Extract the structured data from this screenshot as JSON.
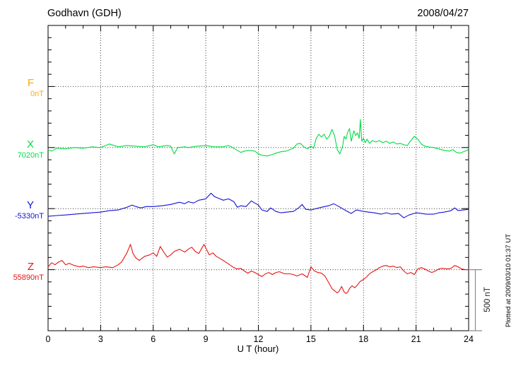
{
  "header": {
    "title": "Godhavn (GDH)",
    "date": "2008/04/27"
  },
  "footer_note": "Plotted at 2009/03/10 01:37 UT",
  "scale_bar": {
    "label": "500 nT",
    "span_nT": 500
  },
  "chart_data": {
    "type": "line",
    "title": "Godhavn (GDH)",
    "date": "2008/04/27",
    "xlabel": "U T (hour)",
    "x_range": [
      0,
      24
    ],
    "x_ticks": [
      0,
      3,
      6,
      9,
      12,
      15,
      18,
      21,
      24
    ],
    "x_minor_step_hours": 1,
    "y_minor_step_nT": 100,
    "y_major_step_nT": 500,
    "grid": "dotted vertical lines every 3 h; dotted horizontal line at each channel baseline",
    "legend_position": "left margin, one colored label per channel",
    "note": "points are [hour, offset_nT_from_channel_baseline]; vertical scale: 500 nT reference bar at right",
    "series": [
      {
        "name": "F",
        "baseline_label": "0nT",
        "baseline_nT": 0,
        "color": "#FFAA00",
        "points": []
      },
      {
        "name": "X",
        "baseline_label": "7020nT",
        "baseline_nT": 7020,
        "color": "#00DD44",
        "points": [
          [
            0,
            -17
          ],
          [
            0.2,
            -29
          ],
          [
            0.5,
            -6
          ],
          [
            1,
            -11
          ],
          [
            1.5,
            0
          ],
          [
            2,
            -6
          ],
          [
            2.5,
            6
          ],
          [
            3,
            0
          ],
          [
            3.5,
            29
          ],
          [
            4,
            6
          ],
          [
            4.5,
            17
          ],
          [
            5,
            11
          ],
          [
            5.5,
            6
          ],
          [
            6,
            23
          ],
          [
            6.3,
            6
          ],
          [
            6.8,
            17
          ],
          [
            7,
            11
          ],
          [
            7.2,
            -52
          ],
          [
            7.4,
            0
          ],
          [
            7.8,
            6
          ],
          [
            8,
            0
          ],
          [
            8.5,
            11
          ],
          [
            9,
            17
          ],
          [
            9.5,
            6
          ],
          [
            10,
            6
          ],
          [
            10.3,
            17
          ],
          [
            10.6,
            -6
          ],
          [
            10.8,
            -23
          ],
          [
            11,
            -40
          ],
          [
            11.2,
            -29
          ],
          [
            11.5,
            -23
          ],
          [
            11.8,
            -29
          ],
          [
            12,
            -52
          ],
          [
            12.2,
            -63
          ],
          [
            12.5,
            -69
          ],
          [
            12.8,
            -57
          ],
          [
            13,
            -46
          ],
          [
            13.3,
            -34
          ],
          [
            13.6,
            -29
          ],
          [
            14,
            -6
          ],
          [
            14.2,
            29
          ],
          [
            14.4,
            34
          ],
          [
            14.6,
            6
          ],
          [
            14.8,
            -11
          ],
          [
            15,
            11
          ],
          [
            15.15,
            -6
          ],
          [
            15.3,
            75
          ],
          [
            15.45,
            109
          ],
          [
            15.6,
            86
          ],
          [
            15.75,
            109
          ],
          [
            15.9,
            69
          ],
          [
            16.05,
            92
          ],
          [
            16.2,
            149
          ],
          [
            16.35,
            98
          ],
          [
            16.5,
            -17
          ],
          [
            16.65,
            -52
          ],
          [
            16.8,
            6
          ],
          [
            16.9,
            92
          ],
          [
            17,
            69
          ],
          [
            17.1,
            126
          ],
          [
            17.2,
            155
          ],
          [
            17.3,
            52
          ],
          [
            17.45,
            138
          ],
          [
            17.55,
            98
          ],
          [
            17.65,
            121
          ],
          [
            17.75,
            75
          ],
          [
            17.82,
            230
          ],
          [
            17.9,
            52
          ],
          [
            18,
            75
          ],
          [
            18.1,
            40
          ],
          [
            18.2,
            69
          ],
          [
            18.35,
            34
          ],
          [
            18.5,
            57
          ],
          [
            18.7,
            46
          ],
          [
            18.9,
            57
          ],
          [
            19.1,
            40
          ],
          [
            19.3,
            52
          ],
          [
            19.5,
            34
          ],
          [
            19.7,
            46
          ],
          [
            19.9,
            29
          ],
          [
            20.1,
            34
          ],
          [
            20.3,
            23
          ],
          [
            20.5,
            17
          ],
          [
            20.7,
            57
          ],
          [
            20.9,
            92
          ],
          [
            21.1,
            69
          ],
          [
            21.3,
            29
          ],
          [
            21.5,
            11
          ],
          [
            21.7,
            6
          ],
          [
            22,
            0
          ],
          [
            22.3,
            -11
          ],
          [
            22.6,
            -23
          ],
          [
            22.9,
            -29
          ],
          [
            23.1,
            -17
          ],
          [
            23.3,
            -40
          ],
          [
            23.5,
            -46
          ],
          [
            23.7,
            -34
          ],
          [
            23.9,
            -23
          ],
          [
            24,
            -11
          ]
        ]
      },
      {
        "name": "Y",
        "baseline_label": "-5330nT",
        "baseline_nT": -5330,
        "color": "#1111D8",
        "points": [
          [
            0,
            -63
          ],
          [
            0.5,
            -57
          ],
          [
            1,
            -52
          ],
          [
            1.5,
            -46
          ],
          [
            2,
            -40
          ],
          [
            2.5,
            -34
          ],
          [
            3,
            -29
          ],
          [
            3.5,
            -17
          ],
          [
            4,
            -11
          ],
          [
            4.5,
            11
          ],
          [
            4.8,
            29
          ],
          [
            5,
            17
          ],
          [
            5.3,
            6
          ],
          [
            5.6,
            17
          ],
          [
            6,
            17
          ],
          [
            6.5,
            23
          ],
          [
            7,
            34
          ],
          [
            7.5,
            52
          ],
          [
            7.8,
            40
          ],
          [
            8,
            57
          ],
          [
            8.3,
            46
          ],
          [
            8.6,
            69
          ],
          [
            9,
            80
          ],
          [
            9.3,
            126
          ],
          [
            9.5,
            98
          ],
          [
            9.8,
            80
          ],
          [
            10,
            69
          ],
          [
            10.3,
            80
          ],
          [
            10.6,
            57
          ],
          [
            10.8,
            11
          ],
          [
            11,
            23
          ],
          [
            11.3,
            17
          ],
          [
            11.6,
            63
          ],
          [
            11.8,
            46
          ],
          [
            12,
            29
          ],
          [
            12.2,
            -11
          ],
          [
            12.5,
            -23
          ],
          [
            12.7,
            6
          ],
          [
            13,
            -23
          ],
          [
            13.3,
            -34
          ],
          [
            13.6,
            -29
          ],
          [
            14,
            -23
          ],
          [
            14.3,
            6
          ],
          [
            14.5,
            34
          ],
          [
            14.7,
            -6
          ],
          [
            15,
            -11
          ],
          [
            15.3,
            0
          ],
          [
            15.6,
            11
          ],
          [
            16,
            23
          ],
          [
            16.3,
            40
          ],
          [
            16.6,
            17
          ],
          [
            17,
            -17
          ],
          [
            17.3,
            -40
          ],
          [
            17.6,
            -11
          ],
          [
            18,
            -23
          ],
          [
            18.3,
            -29
          ],
          [
            18.6,
            -34
          ],
          [
            19,
            -46
          ],
          [
            19.3,
            -34
          ],
          [
            19.6,
            -46
          ],
          [
            20,
            -40
          ],
          [
            20.3,
            -75
          ],
          [
            20.6,
            -52
          ],
          [
            21,
            -34
          ],
          [
            21.3,
            -40
          ],
          [
            21.6,
            -46
          ],
          [
            22,
            -46
          ],
          [
            22.3,
            -34
          ],
          [
            22.6,
            -29
          ],
          [
            23,
            -17
          ],
          [
            23.2,
            6
          ],
          [
            23.4,
            -17
          ],
          [
            23.7,
            -11
          ],
          [
            24,
            -6
          ]
        ]
      },
      {
        "name": "Z",
        "baseline_label": "55890nT",
        "baseline_nT": 55890,
        "color": "#E81414",
        "points": [
          [
            0,
            23
          ],
          [
            0.2,
            57
          ],
          [
            0.4,
            40
          ],
          [
            0.6,
            63
          ],
          [
            0.8,
            75
          ],
          [
            1,
            40
          ],
          [
            1.2,
            52
          ],
          [
            1.5,
            34
          ],
          [
            1.8,
            23
          ],
          [
            2,
            29
          ],
          [
            2.3,
            17
          ],
          [
            2.6,
            23
          ],
          [
            3,
            17
          ],
          [
            3.3,
            23
          ],
          [
            3.7,
            17
          ],
          [
            4,
            40
          ],
          [
            4.2,
            63
          ],
          [
            4.5,
            138
          ],
          [
            4.7,
            207
          ],
          [
            4.85,
            132
          ],
          [
            5,
            98
          ],
          [
            5.2,
            75
          ],
          [
            5.5,
            109
          ],
          [
            5.8,
            121
          ],
          [
            6,
            138
          ],
          [
            6.2,
            109
          ],
          [
            6.4,
            190
          ],
          [
            6.6,
            144
          ],
          [
            6.8,
            103
          ],
          [
            7,
            121
          ],
          [
            7.2,
            149
          ],
          [
            7.5,
            167
          ],
          [
            7.8,
            144
          ],
          [
            8,
            167
          ],
          [
            8.2,
            184
          ],
          [
            8.4,
            149
          ],
          [
            8.6,
            132
          ],
          [
            8.9,
            207
          ],
          [
            9,
            178
          ],
          [
            9.2,
            121
          ],
          [
            9.4,
            138
          ],
          [
            9.6,
            109
          ],
          [
            9.8,
            92
          ],
          [
            10,
            75
          ],
          [
            10.3,
            46
          ],
          [
            10.6,
            17
          ],
          [
            10.8,
            6
          ],
          [
            11,
            11
          ],
          [
            11.2,
            -11
          ],
          [
            11.4,
            -29
          ],
          [
            11.6,
            -11
          ],
          [
            11.8,
            -23
          ],
          [
            12,
            -40
          ],
          [
            12.2,
            -57
          ],
          [
            12.4,
            -34
          ],
          [
            12.6,
            -23
          ],
          [
            12.8,
            -40
          ],
          [
            13,
            -23
          ],
          [
            13.2,
            -17
          ],
          [
            13.5,
            -34
          ],
          [
            13.8,
            -34
          ],
          [
            14,
            -40
          ],
          [
            14.2,
            -52
          ],
          [
            14.5,
            -34
          ],
          [
            14.8,
            -63
          ],
          [
            15,
            23
          ],
          [
            15.2,
            -11
          ],
          [
            15.4,
            -23
          ],
          [
            15.6,
            -29
          ],
          [
            15.8,
            -52
          ],
          [
            16,
            -103
          ],
          [
            16.2,
            -155
          ],
          [
            16.4,
            -178
          ],
          [
            16.5,
            -190
          ],
          [
            16.6,
            -178
          ],
          [
            16.75,
            -138
          ],
          [
            16.9,
            -184
          ],
          [
            17,
            -195
          ],
          [
            17.1,
            -184
          ],
          [
            17.2,
            -155
          ],
          [
            17.35,
            -132
          ],
          [
            17.5,
            -149
          ],
          [
            17.65,
            -126
          ],
          [
            17.8,
            -98
          ],
          [
            18,
            -80
          ],
          [
            18.15,
            -63
          ],
          [
            18.3,
            -40
          ],
          [
            18.45,
            -23
          ],
          [
            18.6,
            -11
          ],
          [
            18.75,
            0
          ],
          [
            18.9,
            17
          ],
          [
            19.1,
            29
          ],
          [
            19.3,
            34
          ],
          [
            19.5,
            23
          ],
          [
            19.7,
            29
          ],
          [
            19.9,
            17
          ],
          [
            20.1,
            23
          ],
          [
            20.3,
            -11
          ],
          [
            20.5,
            -34
          ],
          [
            20.7,
            -23
          ],
          [
            20.9,
            -40
          ],
          [
            21.1,
            6
          ],
          [
            21.3,
            17
          ],
          [
            21.5,
            6
          ],
          [
            21.7,
            -11
          ],
          [
            21.9,
            -23
          ],
          [
            22.1,
            -11
          ],
          [
            22.3,
            6
          ],
          [
            22.5,
            11
          ],
          [
            22.8,
            6
          ],
          [
            23,
            11
          ],
          [
            23.2,
            34
          ],
          [
            23.4,
            23
          ],
          [
            23.6,
            6
          ],
          [
            23.8,
            0
          ],
          [
            24,
            0
          ]
        ]
      }
    ]
  }
}
